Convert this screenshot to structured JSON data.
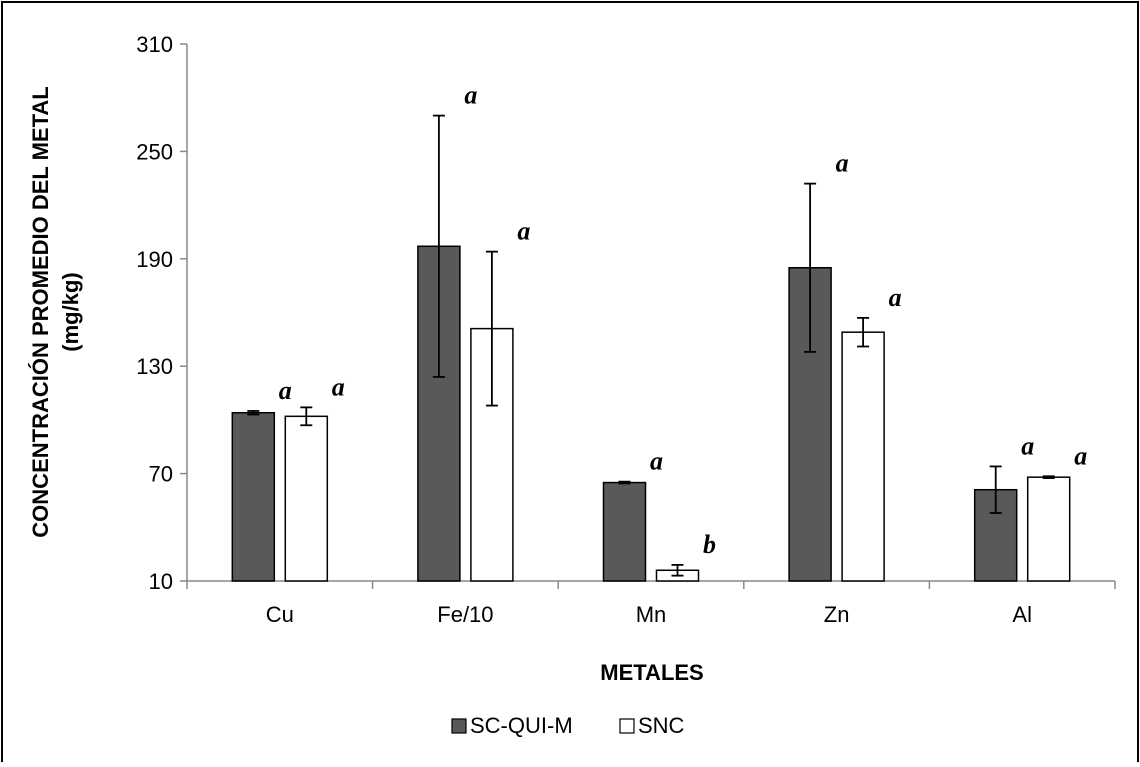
{
  "chart_data": {
    "type": "bar",
    "xlabel": "METALES",
    "ylabel_line1": "CONCENTRACIÓN PROMEDIO DEL METAL",
    "ylabel_line2": "(mg/kg)",
    "ylim": [
      10,
      310
    ],
    "yticks": [
      10,
      70,
      130,
      190,
      250,
      310
    ],
    "categories": [
      "Cu",
      "Fe/10",
      "Mn",
      "Zn",
      "Al"
    ],
    "series": [
      {
        "name": "SC-QUI-M",
        "color": "#595959",
        "values": [
          104,
          197,
          65,
          185,
          61
        ],
        "error": [
          1,
          73,
          0.5,
          47,
          13
        ],
        "significance": [
          "a",
          "a",
          "a",
          "a",
          "a"
        ]
      },
      {
        "name": "SNC",
        "color": "#ffffff",
        "values": [
          102,
          151,
          16,
          149,
          68
        ],
        "error": [
          5,
          43,
          3,
          8,
          0.5
        ],
        "significance": [
          "a",
          "a",
          "b",
          "a",
          "a"
        ]
      }
    ],
    "legend_position": "bottom",
    "grid": false
  }
}
